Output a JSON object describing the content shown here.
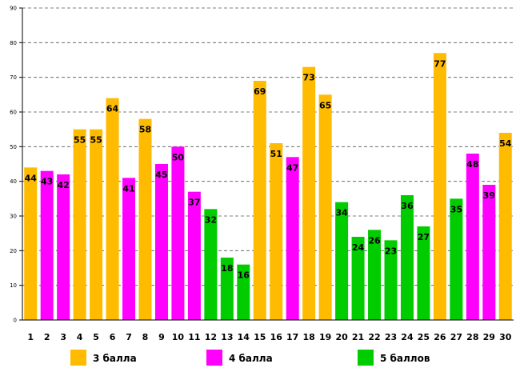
{
  "chart_data": {
    "type": "bar",
    "title": "",
    "xlabel": "",
    "ylabel": "",
    "ylim": [
      0,
      90
    ],
    "yticks": [
      0,
      10,
      20,
      30,
      40,
      50,
      60,
      70,
      80,
      90
    ],
    "grid": true,
    "legend_position": "bottom",
    "categories": [
      "1",
      "2",
      "3",
      "4",
      "5",
      "6",
      "7",
      "8",
      "9",
      "10",
      "11",
      "12",
      "13",
      "14",
      "15",
      "16",
      "17",
      "18",
      "19",
      "20",
      "21",
      "22",
      "23",
      "24",
      "25",
      "26",
      "27",
      "28",
      "29",
      "30"
    ],
    "values": [
      44,
      43,
      42,
      55,
      55,
      64,
      41,
      58,
      45,
      50,
      37,
      32,
      18,
      16,
      69,
      51,
      47,
      73,
      65,
      34,
      24,
      26,
      23,
      36,
      27,
      77,
      35,
      48,
      39,
      54
    ],
    "groups": [
      "3",
      "4",
      "4",
      "3",
      "3",
      "3",
      "4",
      "3",
      "4",
      "4",
      "4",
      "5",
      "5",
      "5",
      "3",
      "3",
      "4",
      "3",
      "3",
      "5",
      "5",
      "5",
      "5",
      "5",
      "5",
      "3",
      "5",
      "4",
      "4",
      "3"
    ],
    "series": [
      {
        "key": "3",
        "name": "3 балла",
        "color": "#FFBB00"
      },
      {
        "key": "4",
        "name": "4 балла",
        "color": "#FF00FF"
      },
      {
        "key": "5",
        "name": "5 баллов",
        "color": "#00CC00"
      }
    ]
  }
}
